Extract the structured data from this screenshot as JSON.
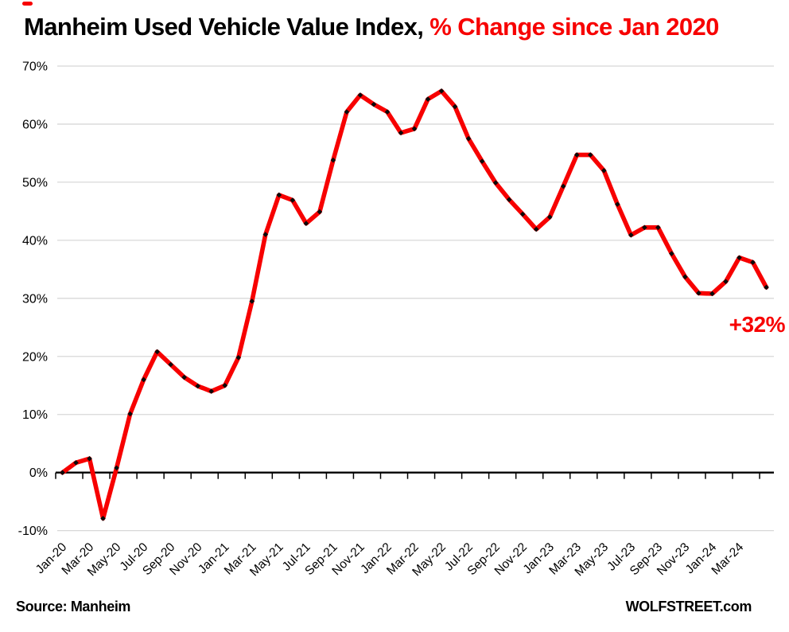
{
  "page": {
    "background": "#ffffff"
  },
  "title": {
    "black_part": "Manheim Used Vehicle Value Index, ",
    "red_part": "% Change since Jan 2020"
  },
  "annotation": {
    "text": "+32%",
    "color": "#f70000"
  },
  "footer": {
    "source": "Source: Manheim",
    "brand": "WOLFSTREET.com"
  },
  "chart_data": {
    "type": "line",
    "title": "Manheim Used Vehicle Value Index, % Change since Jan 2020",
    "xlabel": "",
    "ylabel": "% change since Jan 2020",
    "ylim": [
      -10,
      70
    ],
    "grid": "horizontal",
    "legend_position": "none",
    "line_color": "#f70000",
    "marker_color": "#0a0a0a",
    "gridline_color": "#d8d8d8",
    "axis_color": "#000000",
    "y_ticks": [
      70,
      60,
      50,
      40,
      30,
      20,
      10,
      0,
      -10
    ],
    "y_tick_suffix": "%",
    "x_tick_labels": [
      "Jan-20",
      "Mar-20",
      "May-20",
      "Jul-20",
      "Sep-20",
      "Nov-20",
      "Jan-21",
      "Mar-21",
      "May-21",
      "Jul-21",
      "Sep-21",
      "Nov-21",
      "Jan-22",
      "Mar-22",
      "May-22",
      "Jul-22",
      "Sep-22",
      "Nov-22",
      "Jan-23",
      "Mar-23",
      "May-23",
      "Jul-23",
      "Sep-23",
      "Nov-23",
      "Jan-24",
      "Mar-24"
    ],
    "x": [
      "Jan-20",
      "Feb-20",
      "Mar-20",
      "Apr-20",
      "May-20",
      "Jun-20",
      "Jul-20",
      "Aug-20",
      "Sep-20",
      "Oct-20",
      "Nov-20",
      "Dec-20",
      "Jan-21",
      "Feb-21",
      "Mar-21",
      "Apr-21",
      "May-21",
      "Jun-21",
      "Jul-21",
      "Aug-21",
      "Sep-21",
      "Oct-21",
      "Nov-21",
      "Dec-21",
      "Jan-22",
      "Feb-22",
      "Mar-22",
      "Apr-22",
      "May-22",
      "Jun-22",
      "Jul-22",
      "Aug-22",
      "Sep-22",
      "Oct-22",
      "Nov-22",
      "Dec-22",
      "Jan-23",
      "Feb-23",
      "Mar-23",
      "Apr-23",
      "May-23",
      "Jun-23",
      "Jul-23",
      "Aug-23",
      "Sep-23",
      "Oct-23",
      "Nov-23",
      "Dec-23",
      "Jan-24",
      "Feb-24",
      "Mar-24",
      "Apr-24",
      "May-24"
    ],
    "series": [
      {
        "name": "% Change since Jan 2020",
        "values": [
          0.0,
          1.7,
          2.4,
          -7.9,
          0.8,
          10.1,
          16.0,
          20.8,
          18.6,
          16.4,
          14.9,
          14.0,
          15.0,
          19.8,
          29.5,
          41.0,
          47.8,
          46.9,
          42.9,
          44.9,
          53.8,
          62.1,
          65.0,
          63.4,
          62.1,
          58.5,
          59.2,
          64.3,
          65.7,
          63.0,
          57.5,
          53.6,
          49.9,
          47.0,
          44.5,
          41.9,
          44.0,
          49.3,
          54.7,
          54.7,
          52.0,
          46.2,
          40.9,
          42.2,
          42.2,
          37.7,
          33.7,
          30.9,
          30.8,
          32.9,
          37.0,
          36.2,
          31.9
        ]
      }
    ],
    "final_point_label": "+32%"
  }
}
